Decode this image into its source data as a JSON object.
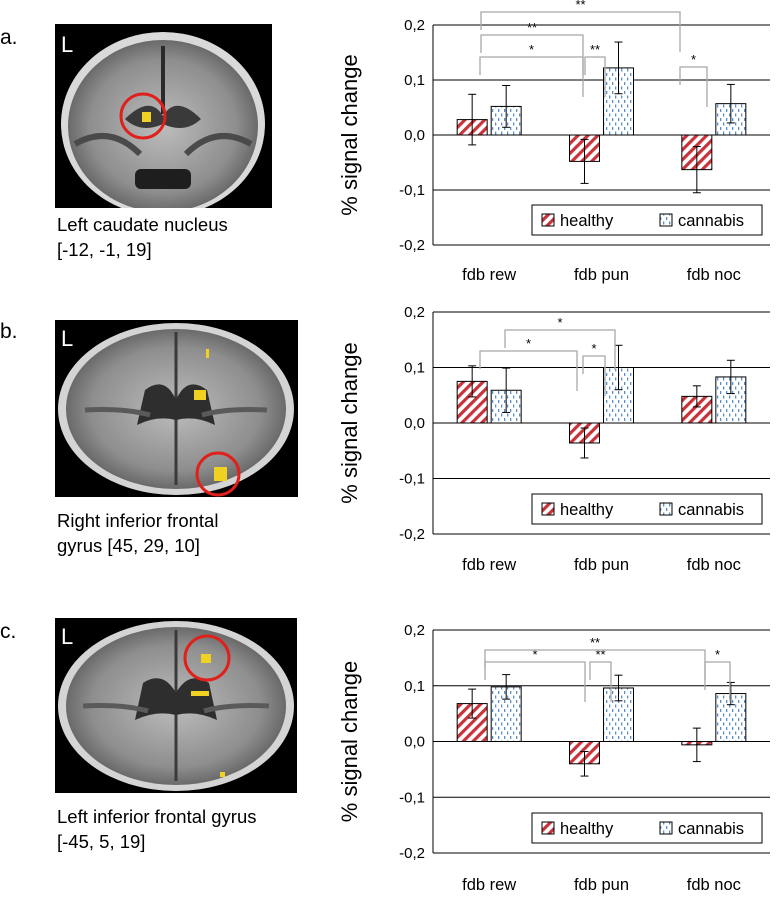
{
  "panels": [
    {
      "label": "a.",
      "brain": {
        "view": "coronal",
        "side_marker": "L"
      },
      "caption": "Left caudate nucleus\n[-12, -1, 19]"
    },
    {
      "label": "b.",
      "brain": {
        "view": "axial",
        "side_marker": "L"
      },
      "caption": "Right inferior frontal\ngyrus [45, 29, 10]"
    },
    {
      "label": "c.",
      "brain": {
        "view": "axial",
        "side_marker": "L"
      },
      "caption": "Left inferior frontal gyrus\n[-45, 5, 19]"
    }
  ],
  "colors": {
    "healthy": "#c8323a",
    "cannabis": "#5a8fc8",
    "highlight_circle": "#e0201a",
    "activation": "#f0d020"
  },
  "chart_data": [
    {
      "type": "bar",
      "ylabel": "% signal change",
      "ylim": [
        -0.2,
        0.2
      ],
      "yticks": [
        "0,2",
        "0,1",
        "0,0",
        "-0,1",
        "-0,2"
      ],
      "categories": [
        "fdb rew",
        "fdb pun",
        "fdb noc"
      ],
      "series": [
        {
          "name": "healthy",
          "values": [
            0.028,
            -0.048,
            -0.063
          ],
          "errors": [
            0.046,
            0.04,
            0.042
          ]
        },
        {
          "name": "cannabis",
          "values": [
            0.052,
            0.122,
            0.057
          ],
          "errors": [
            0.038,
            0.047,
            0.035
          ]
        }
      ],
      "legend": "bottom-right",
      "significance": [
        {
          "from": "fdb rew",
          "to": "fdb pun",
          "label": "*"
        },
        {
          "from": "fdb rew",
          "to": "fdb pun",
          "label": "**"
        },
        {
          "from": "fdb pun",
          "to": "fdb pun",
          "label": "**"
        },
        {
          "from": "fdb rew",
          "to": "fdb noc",
          "label": "**"
        },
        {
          "from": "fdb noc",
          "to": "fdb noc",
          "label": "*"
        }
      ]
    },
    {
      "type": "bar",
      "ylabel": "% signal change",
      "ylim": [
        -0.2,
        0.2
      ],
      "yticks": [
        "0,2",
        "0,1",
        "0,0",
        "-0,1",
        "-0,2"
      ],
      "categories": [
        "fdb rew",
        "fdb pun",
        "fdb noc"
      ],
      "series": [
        {
          "name": "healthy",
          "values": [
            0.075,
            -0.036,
            0.048
          ],
          "errors": [
            0.028,
            0.027,
            0.019
          ]
        },
        {
          "name": "cannabis",
          "values": [
            0.059,
            0.1,
            0.083
          ],
          "errors": [
            0.04,
            0.04,
            0.03
          ]
        }
      ],
      "legend": "bottom-right",
      "significance": [
        {
          "from": "fdb rew",
          "to": "fdb pun",
          "label": "*"
        },
        {
          "from": "fdb rew",
          "to": "fdb pun",
          "label": "*"
        },
        {
          "from": "fdb pun",
          "to": "fdb pun",
          "label": "*"
        }
      ]
    },
    {
      "type": "bar",
      "ylabel": "% signal change",
      "ylim": [
        -0.2,
        0.2
      ],
      "yticks": [
        "0,2",
        "0,1",
        "0,0",
        "-0,1",
        "-0,2"
      ],
      "categories": [
        "fdb rew",
        "fdb pun",
        "fdb noc"
      ],
      "series": [
        {
          "name": "healthy",
          "values": [
            0.068,
            -0.04,
            -0.006
          ],
          "errors": [
            0.026,
            0.022,
            0.03
          ]
        },
        {
          "name": "cannabis",
          "values": [
            0.098,
            0.096,
            0.086
          ],
          "errors": [
            0.022,
            0.023,
            0.02
          ]
        }
      ],
      "legend": "bottom-right",
      "significance": [
        {
          "from": "fdb rew",
          "to": "fdb pun",
          "label": "*"
        },
        {
          "from": "fdb pun",
          "to": "fdb pun",
          "label": "**"
        },
        {
          "from": "fdb rew",
          "to": "fdb noc",
          "label": "**"
        },
        {
          "from": "fdb noc",
          "to": "fdb noc",
          "label": "*"
        }
      ]
    }
  ]
}
